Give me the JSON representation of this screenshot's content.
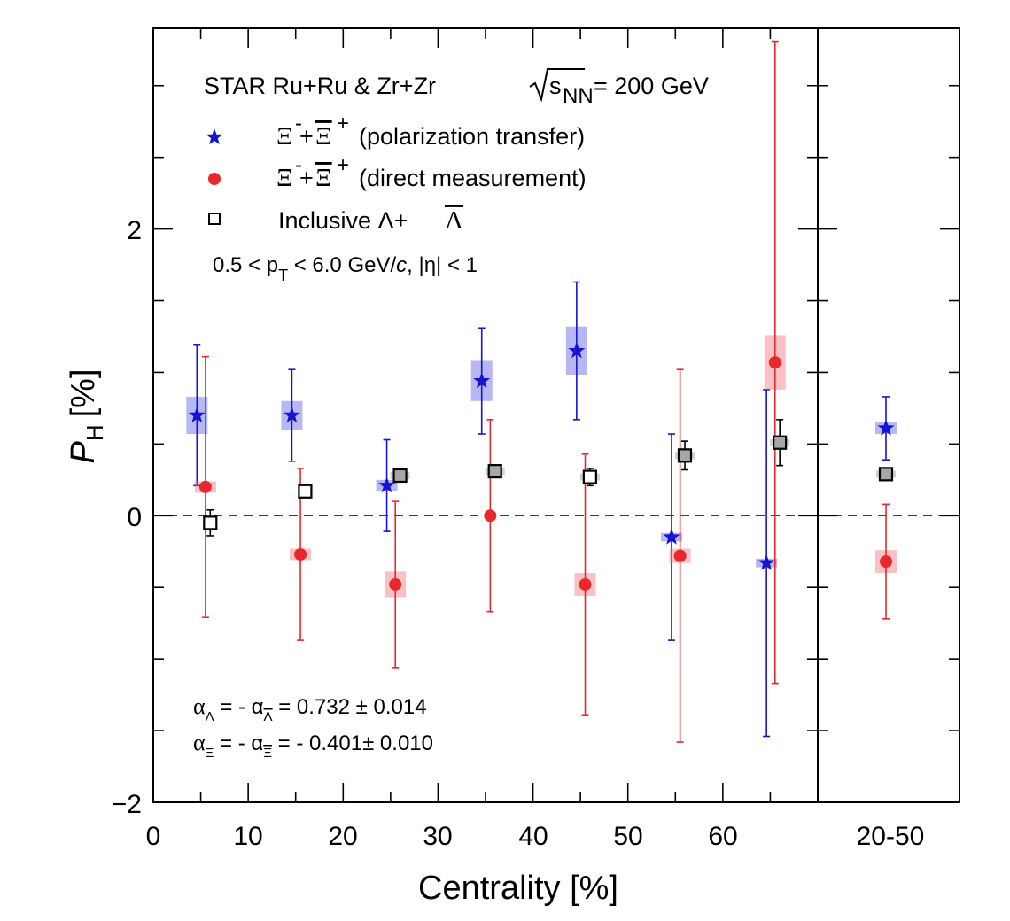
{
  "chart_data": {
    "type": "scatter",
    "xlabel": "Centrality [%]",
    "ylabel": "P",
    "ylabel_sub": "H",
    "ylabel_unit": "[%]",
    "xlim": [
      0,
      70
    ],
    "ylim": [
      -2,
      3.4
    ],
    "x_ticks": [
      "0",
      "10",
      "20",
      "30",
      "40",
      "50",
      "60"
    ],
    "y_ticks": [
      "2",
      "0",
      "−2"
    ],
    "side_panel_label": "20-50",
    "colors": {
      "blue": "#1414d2",
      "red": "#e8282d",
      "black": "#000000",
      "gray": "#a7a7a7"
    },
    "legend": {
      "header_system": "STAR  Ru+Ru & Zr+Zr",
      "header_energy": "= 200 GeV",
      "header_sqrt_s": "s",
      "header_sqrt_sub": "NN",
      "entry1_xi": "Ξ",
      "entry1_label": "(polarization transfer)",
      "entry2_xi": "Ξ",
      "entry2_label": "(direct measurement)",
      "entry3_label": "Inclusive Λ+",
      "entry3_lambda": "Λ",
      "cut_prefix": "0.5 < p",
      "cut_sub": "T",
      "cut_mid": " < 6.0 GeV/",
      "cut_c": "c",
      "cut_suffix": ",  |η| < 1"
    },
    "annotations": {
      "alpha1_lhs": "α",
      "alpha1_sub1": "Λ",
      "alpha1_mid": " = - α",
      "alpha1_sub2": "Λ",
      "alpha1_rhs": " = 0.732 ± 0.014",
      "alpha2_lhs": "α",
      "alpha2_sub1": "Ξ",
      "alpha2_mid": " = - α",
      "alpha2_sub2": "Ξ",
      "alpha2_rhs": " = - 0.401± 0.010"
    },
    "series": [
      {
        "key": "xi_transfer",
        "marker": "star",
        "color": "#1414d2",
        "points": [
          {
            "x": 4.6,
            "y": 0.7,
            "err": 0.49,
            "sys": 0.13
          },
          {
            "x": 14.6,
            "y": 0.7,
            "err": 0.32,
            "sys": 0.1
          },
          {
            "x": 24.6,
            "y": 0.21,
            "err": 0.32,
            "sys": 0.04
          },
          {
            "x": 34.6,
            "y": 0.94,
            "err": 0.37,
            "sys": 0.14
          },
          {
            "x": 44.6,
            "y": 1.15,
            "err": 0.48,
            "sys": 0.17
          },
          {
            "x": 54.6,
            "y": -0.15,
            "err": 0.72,
            "sys": 0.03
          },
          {
            "x": 64.6,
            "y": -0.33,
            "err": 1.21,
            "sys": 0.03
          }
        ],
        "integrated": {
          "y": 0.61,
          "err": 0.22,
          "sys": 0.04
        }
      },
      {
        "key": "xi_direct",
        "marker": "circle",
        "color": "#e8282d",
        "points": [
          {
            "x": 5.5,
            "y": 0.2,
            "err": 0.91,
            "sys": 0.04
          },
          {
            "x": 15.5,
            "y": -0.27,
            "err": 0.6,
            "sys": 0.04
          },
          {
            "x": 25.5,
            "y": -0.48,
            "err": 0.58,
            "sys": 0.09
          },
          {
            "x": 35.5,
            "y": 0.0,
            "err": 0.67,
            "sys": 0.0
          },
          {
            "x": 45.5,
            "y": -0.48,
            "err": 0.91,
            "sys": 0.08
          },
          {
            "x": 55.5,
            "y": -0.28,
            "err": 1.3,
            "sys": 0.05
          },
          {
            "x": 65.5,
            "y": 1.07,
            "err": 2.24,
            "sys": 0.19
          }
        ],
        "integrated": {
          "y": -0.32,
          "err": 0.4,
          "sys": 0.08
        }
      },
      {
        "key": "lambda_inclusive",
        "marker": "square",
        "color": "#000000",
        "points": [
          {
            "x": 6.0,
            "y": -0.05,
            "err": 0.09,
            "sys": 0.0,
            "filled": false
          },
          {
            "x": 16.0,
            "y": 0.17,
            "err": 0.03,
            "sys": 0.0,
            "filled": false
          },
          {
            "x": 26.0,
            "y": 0.28,
            "err": 0.03,
            "sys": 0.02,
            "filled": true
          },
          {
            "x": 36.0,
            "y": 0.31,
            "err": 0.03,
            "sys": 0.02,
            "filled": true
          },
          {
            "x": 46.0,
            "y": 0.27,
            "err": 0.06,
            "sys": 0.02,
            "filled": false
          },
          {
            "x": 56.0,
            "y": 0.42,
            "err": 0.1,
            "sys": 0.02,
            "filled": true
          },
          {
            "x": 66.0,
            "y": 0.51,
            "err": 0.16,
            "sys": 0.02,
            "filled": true
          }
        ],
        "integrated": {
          "y": 0.29,
          "err": 0.02,
          "sys": 0.02,
          "filled": true
        }
      }
    ]
  }
}
